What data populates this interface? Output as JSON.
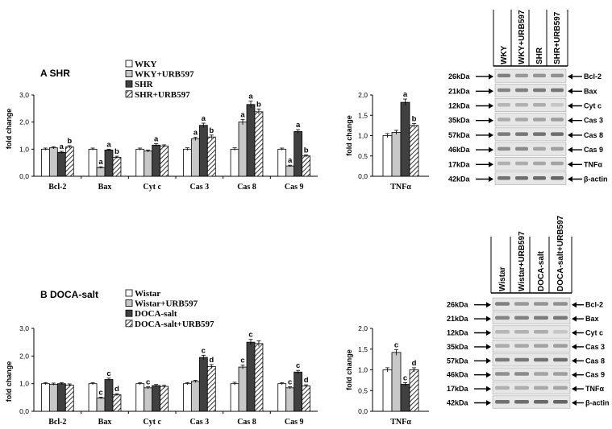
{
  "colors": {
    "control": "#ffffff",
    "treated": "#c8c8c8",
    "disease": "#404040",
    "disease_treated": "hatched",
    "axis": "#000000"
  },
  "panels": [
    {
      "id": "A",
      "title": "A SHR",
      "legend": [
        "WKY",
        "WKY+URB597",
        "SHR",
        "SHR+URB597"
      ],
      "ylabel": "fold change",
      "main_chart": {
        "type": "bar",
        "categories": [
          "Bcl-2",
          "Bax",
          "Cyt c",
          "Cas 3",
          "Cas 8",
          "Cas 9"
        ],
        "ylim": [
          0,
          3
        ],
        "yticks": [
          "0,0",
          "1,0",
          "2,0",
          "3,0"
        ],
        "series": [
          {
            "name": "WKY",
            "values": [
              1.0,
              1.0,
              1.0,
              1.0,
              1.0,
              1.0
            ],
            "errors": [
              0.04,
              0.04,
              0.04,
              0.05,
              0.05,
              0.04
            ]
          },
          {
            "name": "WKY+URB597",
            "values": [
              1.05,
              0.32,
              0.93,
              1.38,
              2.0,
              0.38
            ],
            "errors": [
              0.04,
              0.03,
              0.04,
              0.06,
              0.1,
              0.03
            ]
          },
          {
            "name": "SHR",
            "values": [
              0.88,
              0.97,
              1.15,
              1.88,
              2.65,
              1.65
            ],
            "errors": [
              0.04,
              0.03,
              0.05,
              0.08,
              0.12,
              0.07
            ]
          },
          {
            "name": "SHR+URB597",
            "values": [
              1.08,
              0.7,
              1.12,
              1.45,
              2.38,
              0.75
            ],
            "errors": [
              0.05,
              0.04,
              0.04,
              0.07,
              0.1,
              0.04
            ]
          }
        ],
        "labels": [
          {
            "cat": 0,
            "series": 2,
            "text": "a"
          },
          {
            "cat": 0,
            "series": 3,
            "text": "b"
          },
          {
            "cat": 1,
            "series": 1,
            "text": "a"
          },
          {
            "cat": 1,
            "series": 2,
            "text": "a"
          },
          {
            "cat": 1,
            "series": 3,
            "text": "b"
          },
          {
            "cat": 2,
            "series": 2,
            "text": "a"
          },
          {
            "cat": 3,
            "series": 1,
            "text": "a"
          },
          {
            "cat": 3,
            "series": 2,
            "text": "a"
          },
          {
            "cat": 3,
            "series": 3,
            "text": "b"
          },
          {
            "cat": 4,
            "series": 1,
            "text": "a"
          },
          {
            "cat": 4,
            "series": 2,
            "text": "a"
          },
          {
            "cat": 4,
            "series": 3,
            "text": "b"
          },
          {
            "cat": 5,
            "series": 1,
            "text": "a"
          },
          {
            "cat": 5,
            "series": 2,
            "text": "a"
          },
          {
            "cat": 5,
            "series": 3,
            "text": "b"
          }
        ]
      },
      "side_chart": {
        "type": "bar",
        "categories": [
          "TNFα"
        ],
        "ylim": [
          0,
          2
        ],
        "yticks": [
          "0,0",
          "0,5",
          "1,0",
          "1,5",
          "2,0"
        ],
        "series": [
          {
            "name": "WKY",
            "values": [
              1.0
            ],
            "errors": [
              0.05
            ]
          },
          {
            "name": "WKY+URB597",
            "values": [
              1.08
            ],
            "errors": [
              0.05
            ]
          },
          {
            "name": "SHR",
            "values": [
              1.82
            ],
            "errors": [
              0.08
            ]
          },
          {
            "name": "SHR+URB597",
            "values": [
              1.25
            ],
            "errors": [
              0.05
            ]
          }
        ],
        "labels": [
          {
            "cat": 0,
            "series": 2,
            "text": "a"
          },
          {
            "cat": 0,
            "series": 3,
            "text": "b"
          }
        ]
      },
      "blot": {
        "columns": [
          "WKY",
          "WKY+URB597",
          "SHR",
          "SHR+URB597"
        ],
        "rows": [
          {
            "kda": "26kDa",
            "protein": "Bcl-2"
          },
          {
            "kda": "21kDa",
            "protein": "Bax"
          },
          {
            "kda": "12kDa",
            "protein": "Cyt c"
          },
          {
            "kda": "35kDa",
            "protein": "Cas 3"
          },
          {
            "kda": "57kDa",
            "protein": "Cas 8"
          },
          {
            "kda": "46kDa",
            "protein": "Cas 9"
          },
          {
            "kda": "17kDa",
            "protein": "TNFα"
          },
          {
            "kda": "42kDa",
            "protein": "β-actin"
          }
        ]
      }
    },
    {
      "id": "B",
      "title": "B DOCA-salt",
      "legend": [
        "Wistar",
        "Wistar+URB597",
        "DOCA-salt",
        "DOCA-salt+URB597"
      ],
      "ylabel": "fold change",
      "main_chart": {
        "type": "bar",
        "categories": [
          "Bcl-2",
          "Bax",
          "Cyt c",
          "Cas 3",
          "Cas 8",
          "Cas 9"
        ],
        "ylim": [
          0,
          3
        ],
        "yticks": [
          "0,0",
          "1,0",
          "2,0",
          "3,0"
        ],
        "series": [
          {
            "name": "Wistar",
            "values": [
              1.0,
              1.0,
              1.0,
              1.0,
              1.0,
              1.0
            ],
            "errors": [
              0.04,
              0.04,
              0.04,
              0.04,
              0.05,
              0.04
            ]
          },
          {
            "name": "Wistar+URB597",
            "values": [
              0.98,
              0.48,
              0.85,
              1.08,
              1.6,
              0.85
            ],
            "errors": [
              0.04,
              0.03,
              0.04,
              0.04,
              0.07,
              0.04
            ]
          },
          {
            "name": "DOCA-salt",
            "values": [
              1.0,
              1.15,
              0.93,
              1.95,
              2.5,
              1.42
            ],
            "errors": [
              0.04,
              0.05,
              0.04,
              0.08,
              0.1,
              0.06
            ]
          },
          {
            "name": "DOCA-salt+URB597",
            "values": [
              0.95,
              0.6,
              0.9,
              1.62,
              2.45,
              0.92
            ],
            "errors": [
              0.04,
              0.04,
              0.04,
              0.07,
              0.1,
              0.04
            ]
          }
        ],
        "labels": [
          {
            "cat": 1,
            "series": 1,
            "text": "c"
          },
          {
            "cat": 1,
            "series": 2,
            "text": "c"
          },
          {
            "cat": 1,
            "series": 3,
            "text": "d"
          },
          {
            "cat": 2,
            "series": 1,
            "text": "c"
          },
          {
            "cat": 3,
            "series": 2,
            "text": "c"
          },
          {
            "cat": 3,
            "series": 3,
            "text": "d"
          },
          {
            "cat": 4,
            "series": 1,
            "text": "c"
          },
          {
            "cat": 4,
            "series": 2,
            "text": "c"
          },
          {
            "cat": 5,
            "series": 1,
            "text": "c"
          },
          {
            "cat": 5,
            "series": 2,
            "text": "c"
          },
          {
            "cat": 5,
            "series": 3,
            "text": "d"
          }
        ]
      },
      "side_chart": {
        "type": "bar",
        "categories": [
          "TNFα"
        ],
        "ylim": [
          0,
          2
        ],
        "yticks": [
          "0,0",
          "0,5",
          "1,0",
          "1,5",
          "2,0"
        ],
        "series": [
          {
            "name": "Wistar",
            "values": [
              1.0
            ],
            "errors": [
              0.05
            ]
          },
          {
            "name": "Wistar+URB597",
            "values": [
              1.42
            ],
            "errors": [
              0.07
            ]
          },
          {
            "name": "DOCA-salt",
            "values": [
              0.65
            ],
            "errors": [
              0.04
            ]
          },
          {
            "name": "DOCA-salt+URB597",
            "values": [
              1.0
            ],
            "errors": [
              0.05
            ]
          }
        ],
        "labels": [
          {
            "cat": 0,
            "series": 1,
            "text": "c"
          },
          {
            "cat": 0,
            "series": 2,
            "text": "c"
          },
          {
            "cat": 0,
            "series": 3,
            "text": "d"
          }
        ]
      },
      "blot": {
        "columns": [
          "Wistar",
          "Wistar+URB597",
          "DOCA-salt",
          "DOCA-salt+URB597"
        ],
        "rows": [
          {
            "kda": "26kDa",
            "protein": "Bcl-2"
          },
          {
            "kda": "21kDa",
            "protein": "Bax"
          },
          {
            "kda": "12kDa",
            "protein": "Cyt c"
          },
          {
            "kda": "35kDa",
            "protein": "Cas 3"
          },
          {
            "kda": "57kDa",
            "protein": "Cas 8"
          },
          {
            "kda": "46kDa",
            "protein": "Cas 9"
          },
          {
            "kda": "17kDa",
            "protein": "TNFα"
          },
          {
            "kda": "42kDa",
            "protein": "β-actin"
          }
        ]
      }
    }
  ]
}
